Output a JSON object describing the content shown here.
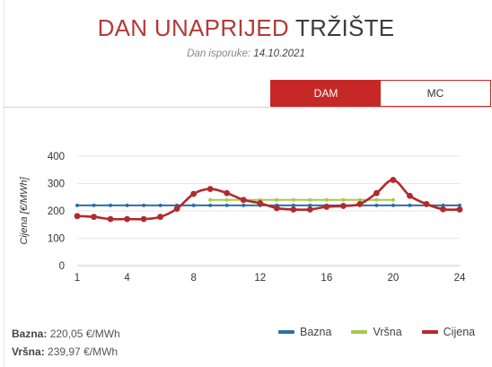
{
  "header": {
    "title_part1": "DAN UNAPRIJED",
    "title_part2": "TRŽIŠTE",
    "delivery_label": "Dan isporuke:",
    "delivery_date": "14.10.2021"
  },
  "tabs": [
    {
      "label": "DAM",
      "active": true
    },
    {
      "label": "MC",
      "active": false
    }
  ],
  "stats": {
    "bazna_label": "Bazna:",
    "bazna_value": "220,05 €/MWh",
    "vrsna_label": "Vršna:",
    "vrsna_value": "239,97 €/MWh"
  },
  "colors": {
    "bazna": "#2d6fa3",
    "vrsna": "#a9c94a",
    "cijena": "#b22a2e",
    "accent": "#c62828"
  },
  "chart_data": {
    "type": "line",
    "ylabel": "Cijena [€/MWh]",
    "xlabel": "",
    "ylim": [
      0,
      400
    ],
    "yticks": [
      0,
      100,
      200,
      300,
      400
    ],
    "xlim": [
      1,
      24
    ],
    "xticks": [
      1,
      4,
      8,
      12,
      16,
      20,
      24
    ],
    "grid": true,
    "legend_position": "bottom-right",
    "series": [
      {
        "name": "Bazna",
        "color": "#2d6fa3",
        "x": [
          1,
          2,
          3,
          4,
          5,
          6,
          7,
          8,
          9,
          10,
          11,
          12,
          13,
          14,
          15,
          16,
          17,
          18,
          19,
          20,
          21,
          22,
          23,
          24
        ],
        "y": [
          220.05,
          220.05,
          220.05,
          220.05,
          220.05,
          220.05,
          220.05,
          220.05,
          220.05,
          220.05,
          220.05,
          220.05,
          220.05,
          220.05,
          220.05,
          220.05,
          220.05,
          220.05,
          220.05,
          220.05,
          220.05,
          220.05,
          220.05,
          220.05
        ]
      },
      {
        "name": "Vršna",
        "color": "#a9c94a",
        "x": [
          9,
          10,
          11,
          12,
          13,
          14,
          15,
          16,
          17,
          18,
          19,
          20
        ],
        "y": [
          239.97,
          239.97,
          239.97,
          239.97,
          239.97,
          239.97,
          239.97,
          239.97,
          239.97,
          239.97,
          239.97,
          239.97
        ]
      },
      {
        "name": "Cijena",
        "color": "#b22a2e",
        "x": [
          1,
          2,
          3,
          4,
          5,
          6,
          7,
          8,
          9,
          10,
          11,
          12,
          13,
          14,
          15,
          16,
          17,
          18,
          19,
          20,
          21,
          22,
          23,
          24
        ],
        "y": [
          181,
          178,
          170,
          170,
          170,
          178,
          208,
          262,
          280,
          265,
          240,
          228,
          210,
          205,
          205,
          215,
          218,
          225,
          265,
          313,
          255,
          225,
          206,
          205
        ]
      }
    ]
  }
}
